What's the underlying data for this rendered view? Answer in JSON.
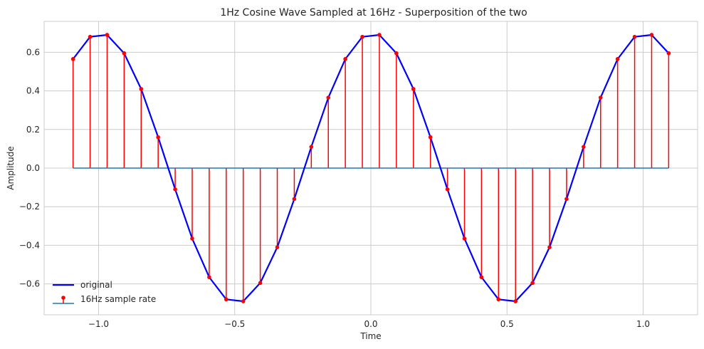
{
  "chart_data": {
    "type": "line",
    "title": "1Hz Cosine Wave Sampled at 16Hz - Superposition of the two",
    "xlabel": "Time",
    "ylabel": "Amplitude",
    "xlim": [
      -1.2,
      1.2
    ],
    "ylim": [
      -0.76,
      0.76
    ],
    "xticks": [
      -1.0,
      -0.5,
      0.0,
      0.5,
      1.0
    ],
    "xtick_labels": [
      "−1.0",
      "−0.5",
      "0.0",
      "0.5",
      "1.0"
    ],
    "yticks": [
      -0.6,
      -0.4,
      -0.2,
      0.0,
      0.2,
      0.4,
      0.6
    ],
    "ytick_labels": [
      "−0.6",
      "−0.4",
      "−0.2",
      "0.0",
      "0.2",
      "0.4",
      "0.6"
    ],
    "grid": true,
    "legend_position": "lower-left",
    "x": [
      -1.09375,
      -1.03125,
      -0.96875,
      -0.90625,
      -0.84375,
      -0.78125,
      -0.71875,
      -0.65625,
      -0.59375,
      -0.53125,
      -0.46875,
      -0.40625,
      -0.34375,
      -0.28125,
      -0.21875,
      -0.15625,
      -0.09375,
      -0.03125,
      0.03125,
      0.09375,
      0.15625,
      0.21875,
      0.28125,
      0.34375,
      0.40625,
      0.46875,
      0.53125,
      0.59375,
      0.65625,
      0.71875,
      0.78125,
      0.84375,
      0.90625,
      0.96875,
      1.03125,
      1.09375
    ],
    "series": [
      {
        "name": "original",
        "style": "line",
        "color": "#0000ff",
        "values": [
          0.565,
          0.68,
          0.69,
          0.595,
          0.41,
          0.16,
          -0.11,
          -0.365,
          -0.565,
          -0.68,
          -0.69,
          -0.595,
          -0.41,
          -0.16,
          0.11,
          0.365,
          0.565,
          0.68,
          0.69,
          0.595,
          0.41,
          0.16,
          -0.11,
          -0.365,
          -0.565,
          -0.68,
          -0.69,
          -0.595,
          -0.41,
          -0.16,
          0.11,
          0.365,
          0.565,
          0.68,
          0.69,
          0.595
        ]
      },
      {
        "name": "16Hz sample rate",
        "style": "stem",
        "color": "#ff0000",
        "baseline_color": "#1f77b4",
        "values": [
          0.565,
          0.68,
          0.69,
          0.595,
          0.41,
          0.16,
          -0.11,
          -0.365,
          -0.565,
          -0.68,
          -0.69,
          -0.595,
          -0.41,
          -0.16,
          0.11,
          0.365,
          0.565,
          0.68,
          0.69,
          0.595,
          0.41,
          0.16,
          -0.11,
          -0.365,
          -0.565,
          -0.68,
          -0.69,
          -0.595,
          -0.41,
          -0.16,
          0.11,
          0.365,
          0.565,
          0.68,
          0.69,
          0.595
        ]
      }
    ]
  }
}
